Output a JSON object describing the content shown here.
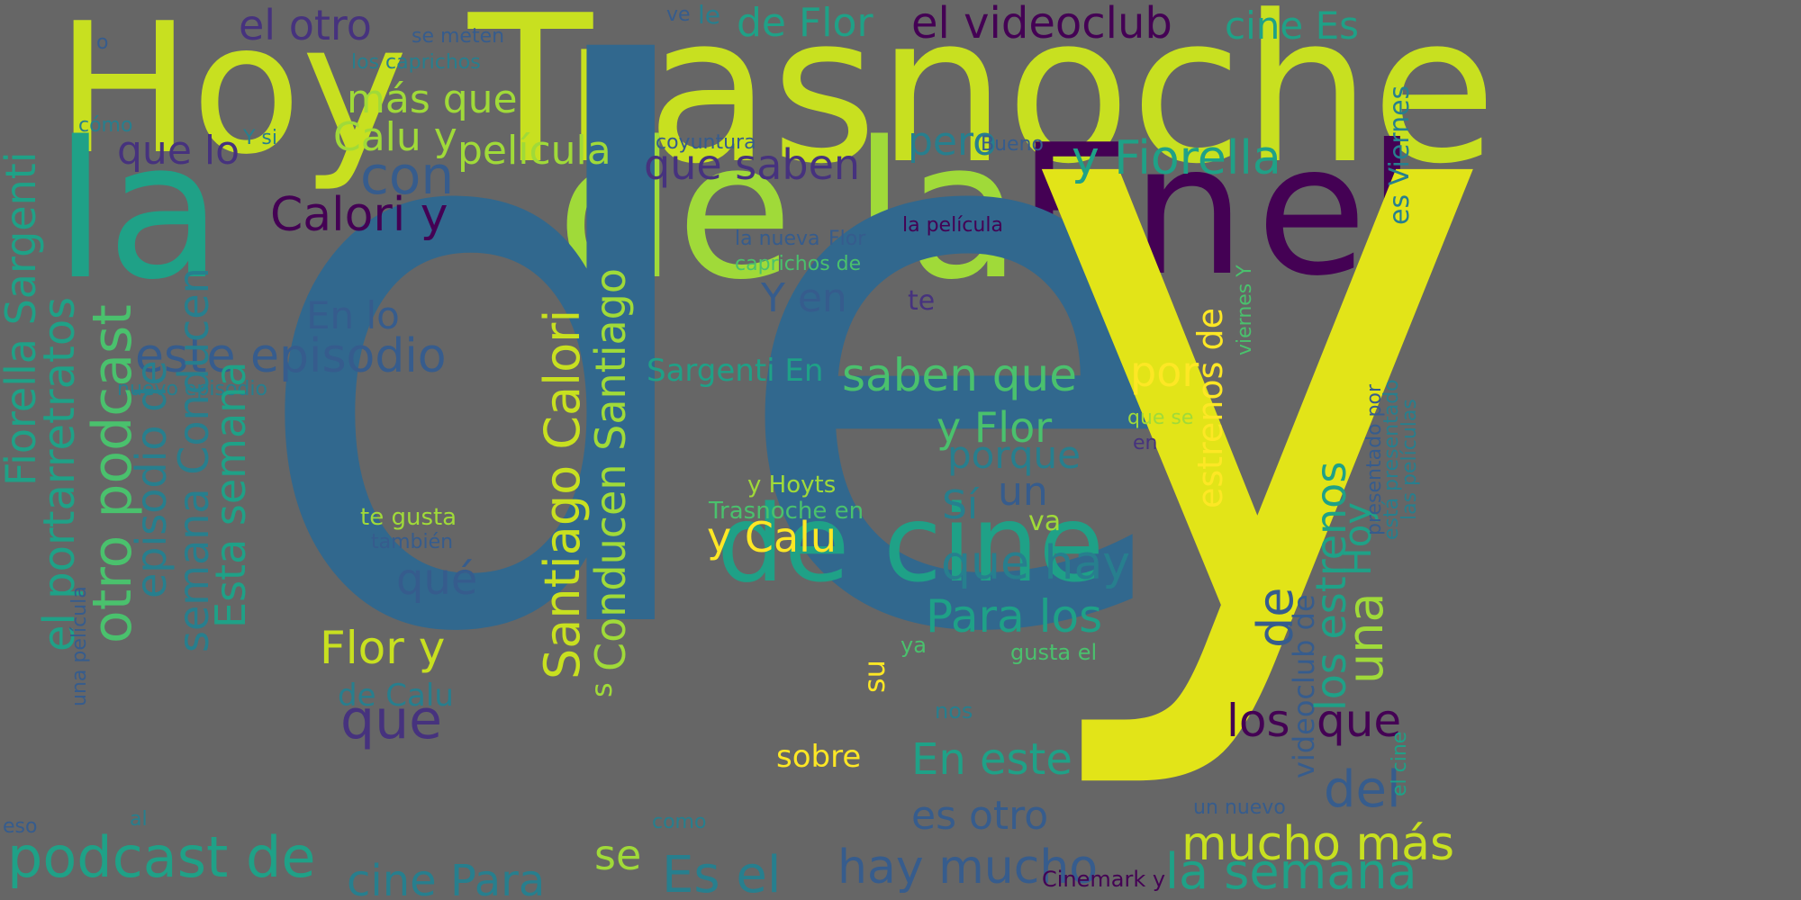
{
  "background": "#666666",
  "palette": [
    "#440154",
    "#46327e",
    "#365c8d",
    "#277f8e",
    "#1fa187",
    "#4ac16d",
    "#a0da39",
    "#fde725"
  ],
  "words": [
    "Hoy",
    "Trasnoche",
    "la",
    "de la",
    "En",
    "el",
    "de",
    "y",
    "de cine",
    "el otro",
    "el videoclub",
    "de Flor",
    "cine Es",
    "le",
    "ve",
    "se meten",
    "los caprichos",
    "o",
    "cómo",
    "más que",
    "Calu y",
    "película",
    "que lo",
    "Y si",
    "con",
    "pero",
    "Bueno",
    "coyuntura",
    "y Fiorella",
    "es Viernes",
    "que saben",
    "Calori y",
    "la película",
    "la nueva",
    "Flor",
    "caprichos de",
    "Y en",
    "te",
    "En lo",
    "este episodio",
    "nuevo episodio",
    "Sargenti En",
    "saben que",
    "por",
    "estrenos de",
    "viernes Y",
    "presentado por",
    "está presentado",
    "las películas",
    "y Flor",
    "que se",
    "en",
    "porque",
    "un",
    "Sí",
    "y Hoyts",
    "Trasnoche en",
    "te gusta",
    "también",
    "y Calu",
    "va",
    "que hay",
    "qué",
    "Para los",
    "Flor y",
    "ya",
    "gusta el",
    "de Calu",
    "nos",
    "que",
    "su",
    "sobre",
    "En este",
    "los",
    "que",
    "del",
    "es otro",
    "mucho más",
    "un nuevo",
    "como",
    "se",
    "hay mucho",
    "Cinemark y",
    "la semana",
    "podcast de",
    "cine Para",
    "Es el",
    "eso",
    "al",
    "una película",
    "Fiorella Sargenti",
    "el portarretratos",
    "otro podcast",
    "episodio de",
    "semana Conducen",
    "Esta semana",
    "Santiago Calori",
    "Conducen Santiago",
    "s",
    "una",
    "los estrenos",
    "de",
    "Hoy",
    "videoclub de",
    "el cine"
  ]
}
